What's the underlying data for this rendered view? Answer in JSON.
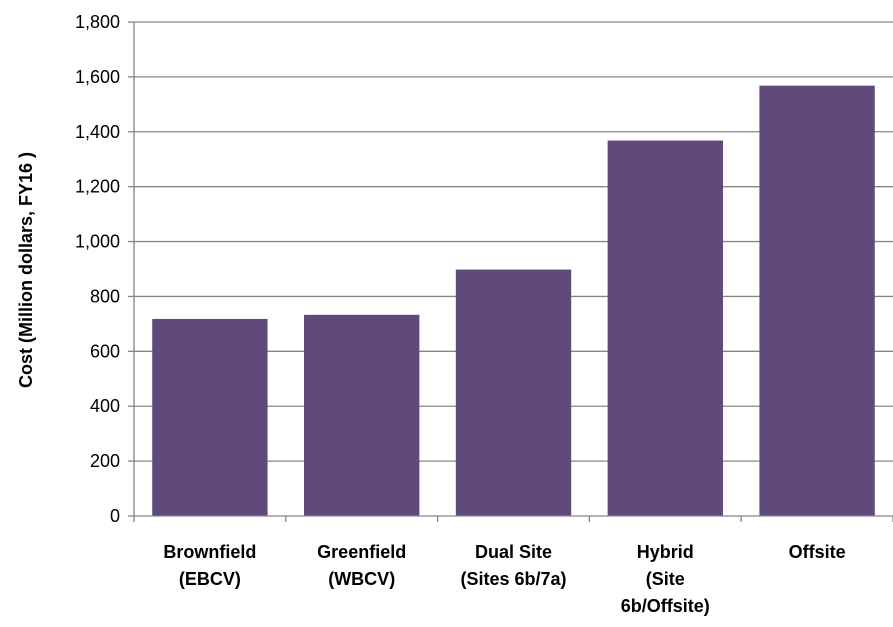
{
  "chart_data": {
    "type": "bar",
    "title": "",
    "xlabel": "",
    "ylabel": "Cost (Million dollars, FY16 )",
    "categories": [
      [
        "Brownfield",
        "(EBCV)"
      ],
      [
        "Greenfield",
        "(WBCV)"
      ],
      [
        "Dual Site",
        "(Sites 6b/7a)"
      ],
      [
        "Hybrid",
        "(Site",
        "6b/Offsite)"
      ],
      [
        "Offsite"
      ]
    ],
    "values": [
      718,
      733,
      898,
      1368,
      1568
    ],
    "ylim": [
      0,
      1800
    ],
    "yticks": [
      0,
      200,
      400,
      600,
      800,
      1000,
      1200,
      1400,
      1600,
      1800
    ],
    "ytick_labels": [
      "0",
      "200",
      "400",
      "600",
      "800",
      "1,000",
      "1,200",
      "1,400",
      "1,600",
      "1,800"
    ],
    "grid": true,
    "bar_color": "#604a7b",
    "grid_color": "#868686"
  }
}
